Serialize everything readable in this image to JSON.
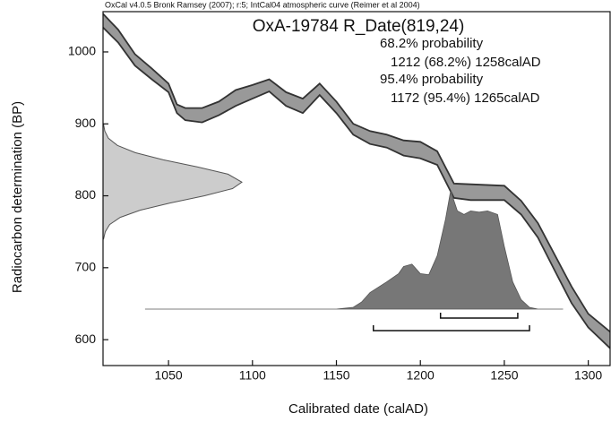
{
  "chart_data": {
    "type": "calibration",
    "header": "OxCal v4.0.5 Bronk Ramsey (2007); r:5; IntCal04 atmospheric curve (Reimer et al 2004)",
    "title": "OxA-19784 R_Date(819,24)",
    "xlabel": "Calibrated date (calAD)",
    "ylabel": "Radiocarbon determination (BP)",
    "xlim": [
      1011,
      1313
    ],
    "ylim": [
      564,
      1056
    ],
    "xticks": [
      1050,
      1100,
      1150,
      1200,
      1250,
      1300
    ],
    "yticks": [
      600,
      700,
      800,
      900,
      1000
    ],
    "curve": {
      "color": "#999999",
      "x": [
        1011,
        1020,
        1030,
        1040,
        1050,
        1055,
        1060,
        1070,
        1080,
        1090,
        1100,
        1110,
        1120,
        1130,
        1140,
        1150,
        1160,
        1170,
        1180,
        1190,
        1200,
        1210,
        1220,
        1230,
        1250,
        1260,
        1270,
        1280,
        1290,
        1300,
        1313
      ],
      "upper": [
        1053,
        1031,
        997,
        977,
        956,
        927,
        922,
        922,
        931,
        947,
        954,
        962,
        944,
        935,
        956,
        931,
        900,
        890,
        885,
        877,
        875,
        862,
        817,
        816,
        814,
        793,
        762,
        718,
        674,
        636,
        611
      ],
      "lower": [
        1034,
        1013,
        981,
        962,
        944,
        915,
        905,
        902,
        912,
        925,
        935,
        945,
        925,
        915,
        940,
        915,
        885,
        872,
        867,
        856,
        852,
        843,
        797,
        794,
        794,
        774,
        742,
        696,
        651,
        617,
        588
      ]
    },
    "radiocarbon_density": {
      "color": "#cccccc",
      "y": [
        740,
        750,
        760,
        770,
        780,
        790,
        800,
        810,
        819,
        830,
        840,
        850,
        860,
        870,
        880,
        890,
        900
      ],
      "values": [
        0.4,
        1.6,
        4.8,
        12.4,
        26.7,
        48.2,
        73.1,
        93.2,
        100,
        90,
        68.2,
        43.4,
        23.2,
        10.4,
        3.9,
        1.3,
        0.3
      ]
    },
    "calibrated_density": {
      "color": "#777777",
      "x": [
        1036,
        1150,
        1160,
        1165,
        1170,
        1180,
        1187,
        1190,
        1195,
        1200,
        1205,
        1210,
        1215,
        1218,
        1222,
        1226,
        1230,
        1235,
        1240,
        1246,
        1250,
        1255,
        1260,
        1265,
        1270,
        1285
      ],
      "values": [
        0,
        0,
        1.5,
        6,
        14,
        23,
        30,
        36,
        38,
        30,
        29,
        45,
        76,
        100,
        83,
        80,
        83,
        82,
        83,
        80,
        53,
        23,
        8,
        1.5,
        0,
        0
      ]
    },
    "ranges": [
      {
        "heading": "68.2% probability",
        "label": "1212 (68.2%) 1258calAD",
        "from": 1212,
        "to": 1258
      },
      {
        "heading": "95.4% probability",
        "label": "1172 (95.4%) 1265calAD",
        "from": 1172,
        "to": 1265
      }
    ]
  }
}
